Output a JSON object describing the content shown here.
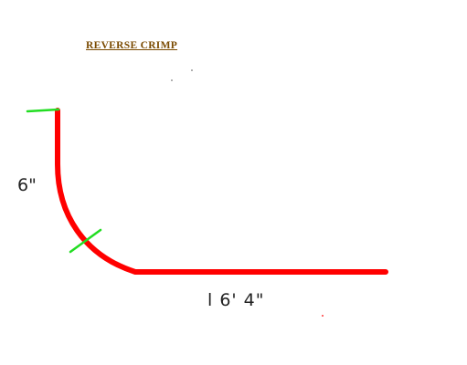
{
  "title": "REVERSE CRIMP",
  "dimensions": {
    "vertical_leg": "6\"",
    "horizontal_leg": "l 6' 4\""
  },
  "colors": {
    "profile": "#ff0000",
    "markers": "#22dd22",
    "title": "#7a4a00",
    "text": "#222222",
    "background": "#ffffff"
  }
}
